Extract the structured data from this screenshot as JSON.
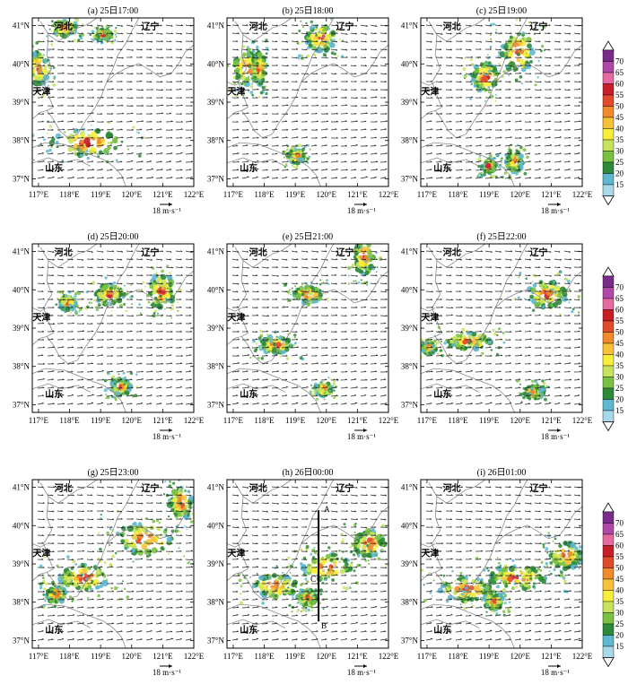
{
  "panels": [
    {
      "title": "(a) 25日17:00"
    },
    {
      "title": "(b) 25日18:00"
    },
    {
      "title": "(c) 25日19:00"
    },
    {
      "title": "(d) 25日20:00"
    },
    {
      "title": "(e) 25日21:00"
    },
    {
      "title": "(f) 25日22:00"
    },
    {
      "title": "(g) 25日23:00"
    },
    {
      "title": "(h) 26日00:00"
    },
    {
      "title": "(i) 26日01:00"
    }
  ],
  "axes": {
    "lon_labels": [
      "117°E",
      "118°E",
      "119°E",
      "120°E",
      "121°E",
      "122°E"
    ],
    "lat_labels": [
      "41°N",
      "40°N",
      "39°N",
      "38°N",
      "37°N"
    ],
    "lon_range": [
      116.8,
      122.0
    ],
    "lat_range": [
      36.8,
      41.2
    ]
  },
  "places": [
    {
      "name": "河北",
      "lon": 117.8,
      "lat": 40.9
    },
    {
      "name": "辽宁",
      "lon": 120.6,
      "lat": 40.9
    },
    {
      "name": "天津",
      "lon": 117.1,
      "lat": 39.2
    },
    {
      "name": "山东",
      "lon": 117.5,
      "lat": 37.2
    }
  ],
  "wind_reference": {
    "label": "18 m·s⁻¹",
    "speed": 18
  },
  "colorbar": {
    "levels": [
      15,
      20,
      25,
      30,
      35,
      40,
      45,
      50,
      55,
      60,
      65,
      70
    ],
    "colors": [
      "#a9d8e8",
      "#5fb8d0",
      "#2e8a3a",
      "#7ac143",
      "#c7e35e",
      "#f7ee3b",
      "#f7c23a",
      "#f08a2a",
      "#e14a2a",
      "#c81e28",
      "#e66aa0",
      "#b048a8",
      "#7a2a8a"
    ],
    "low_color": "#ffffff",
    "high_color": "#ffffff"
  },
  "cross_section": {
    "panel": 7,
    "start_label": "A",
    "mid_label": "C",
    "end_label": "B",
    "start": {
      "lon": 119.75,
      "lat": 40.4
    },
    "mid": {
      "lon": 119.75,
      "lat": 38.6
    },
    "end": {
      "lon": 119.75,
      "lat": 37.5
    }
  }
}
